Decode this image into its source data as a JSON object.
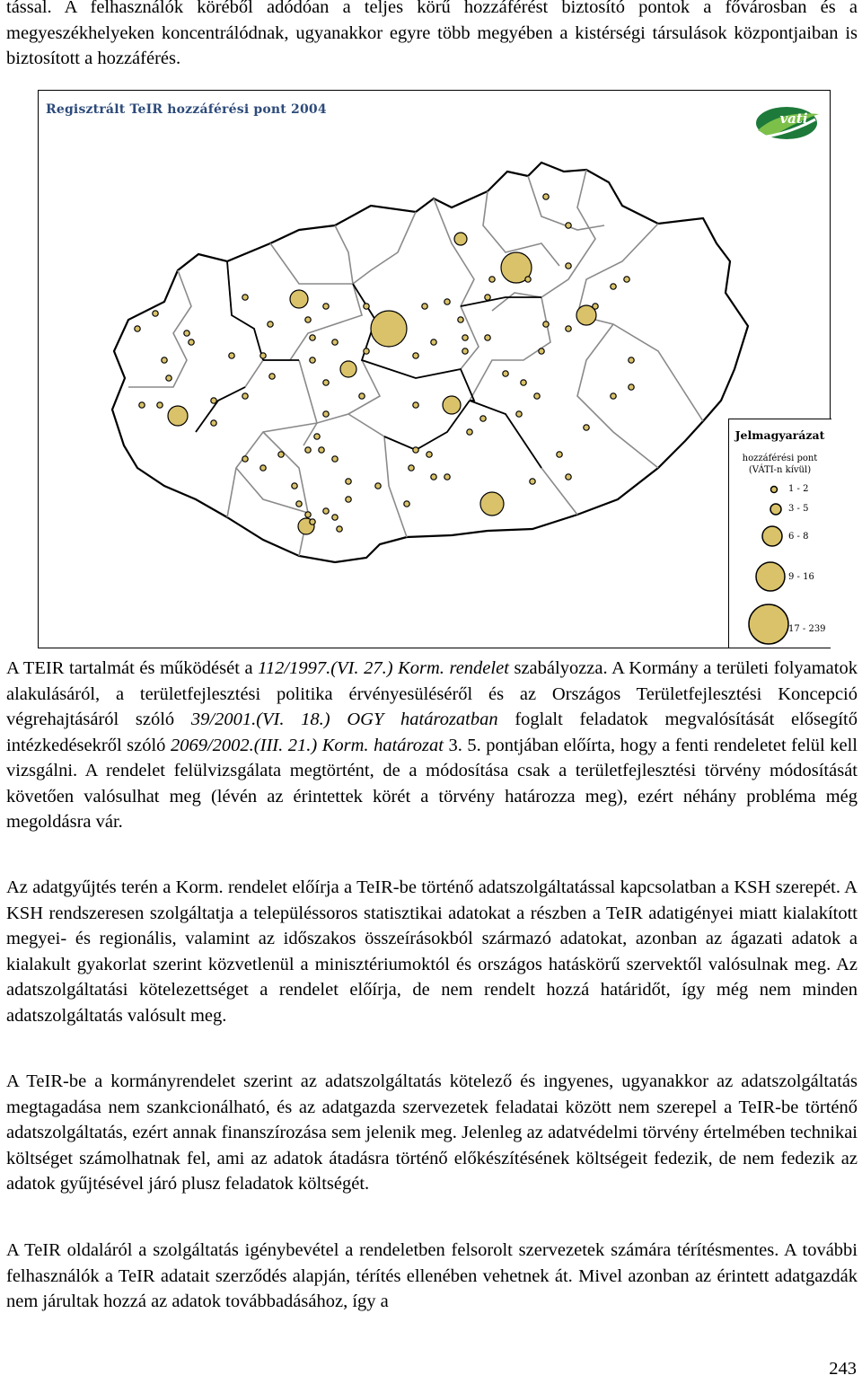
{
  "paragraphs": {
    "intro": "tással. A felhasználók köréből adódóan a teljes körű hozzáférést biztosító pontok a fővárosban és a megyeszékhelyeken koncentrálódnak, ugyanakkor egyre több megyében a kistérségi társulások központjaiban is biztosított a hozzáférés.",
    "p1_a": "A TEIR tartalmát és működését a ",
    "p1_ref1": "112/1997.(VI. 27.) Korm. rendelet",
    "p1_b": " szabályozza. A Kormány a területi folyamatok alakulásáról, a területfejlesztési politika érvényesüléséről és az Országos Területfejlesztési Koncepció végrehajtásáról szóló ",
    "p1_ref2": "39/2001.(VI. 18.) OGY határozatban",
    "p1_c": " foglalt feladatok megvalósítását elősegítő intézkedésekről szóló ",
    "p1_ref3": "2069/2002.(III. 21.) Korm. határozat",
    "p1_d": " 3. 5. pontjában előírta, hogy a fenti rendeletet felül kell vizsgálni. A rendelet felülvizsgálata megtörtént, de a módosítása csak a területfejlesztési törvény módosítását követően valósulhat meg (lévén az érintettek körét a törvény határozza meg), ezért néhány probléma még megoldásra vár.",
    "p2": "Az adatgyűjtés terén a Korm. rendelet előírja a TeIR-be történő adatszolgáltatással kapcsolatban a KSH szerepét. A KSH rendszeresen szolgáltatja a településsoros statisztikai adatokat a részben a TeIR adatigényei miatt kialakított megyei- és regionális, valamint az időszakos összeírásokból származó adatokat, azonban az ágazati adatok a kialakult gyakorlat szerint közvetlenül a minisztériumoktól és országos hatáskörű szervektől valósulnak meg. Az adatszolgáltatási kötelezettséget a rendelet előírja, de nem rendelt hozzá határidőt, így még nem minden adatszolgáltatás valósult meg.",
    "p3": "A TeIR-be a kormányrendelet szerint az adatszolgáltatás kötelező és ingyenes, ugyanakkor az adatszolgáltatás megtagadása nem szankcionálható, és az adatgazda szervezetek feladatai között nem szerepel a TeIR-be történő adatszolgáltatás, ezért annak finanszírozása sem jelenik meg. Jelenleg az adatvédelmi törvény értelmében technikai költséget számolhatnak fel, ami az adatok átadásra történő előkészítésének költségeit fedezik, de nem fedezik az adatok gyűjtésével járó plusz feladatok költségét.",
    "p4": "A TeIR oldaláról a szolgáltatás igénybevétel a rendeletben felsorolt szervezetek számára térítésmentes. A további felhasználók a TeIR adatait szerződés alapján, térítés ellenében vehetnek át. Mivel azonban az érintett adatgazdák nem járultak hozzá az adatok továbbadásához, így a"
  },
  "map": {
    "title": "Regisztrált TeIR hozzáférési pont 2004",
    "logo_text": "vati",
    "fill_color": "#d9c26a",
    "legend": {
      "title": "Jelmagyarázat",
      "subtitle_1": "hozzáférési pont",
      "subtitle_2": "(VÁTI-n kívül)",
      "classes": [
        "1 - 2",
        "3 - 5",
        "6 - 8",
        "9 - 16",
        "17 - 239"
      ]
    }
  },
  "page_number": "243"
}
